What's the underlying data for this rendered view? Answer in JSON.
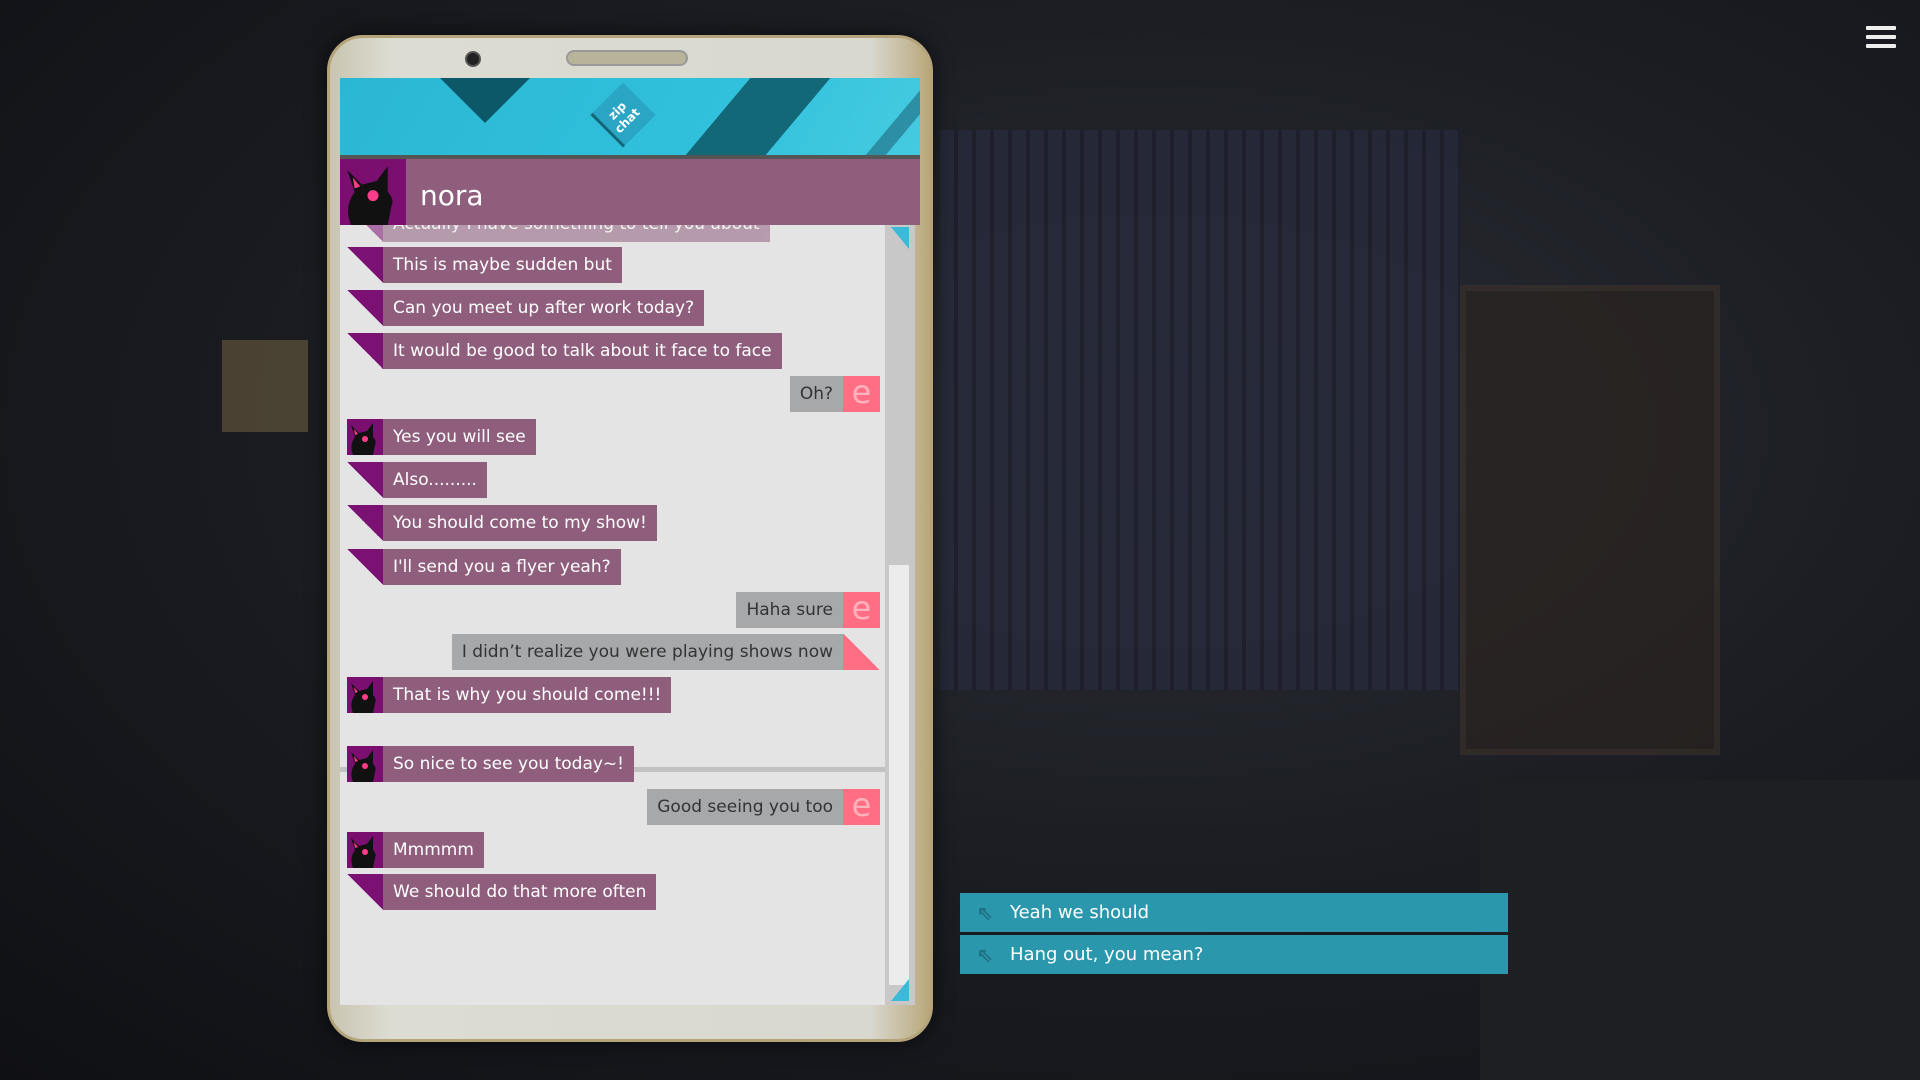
{
  "app": {
    "logo_text": "zip chat",
    "contact_name": "nora"
  },
  "messages": [
    {
      "from": "nora",
      "text": "Actually I have something to tell you about",
      "marker": "triangle"
    },
    {
      "from": "nora",
      "text": "This is maybe sudden but",
      "marker": "triangle"
    },
    {
      "from": "nora",
      "text": "Can you meet up after work today?",
      "marker": "triangle"
    },
    {
      "from": "nora",
      "text": "It would be good to talk about it face to face",
      "marker": "triangle"
    },
    {
      "from": "me",
      "text": "Oh?",
      "marker": "e-icon"
    },
    {
      "from": "nora",
      "text": "Yes you will see",
      "marker": "avatar"
    },
    {
      "from": "nora",
      "text": "Also.........",
      "marker": "triangle"
    },
    {
      "from": "nora",
      "text": "You should come to my show!",
      "marker": "triangle"
    },
    {
      "from": "nora",
      "text": "I'll send you a flyer yeah?",
      "marker": "triangle"
    },
    {
      "from": "me",
      "text": "Haha sure",
      "marker": "e-icon"
    },
    {
      "from": "me",
      "text": "I didn’t realize you were playing shows now",
      "marker": "triangle"
    },
    {
      "from": "nora",
      "text": "That is why you should come!!!",
      "marker": "avatar"
    },
    {
      "from": "nora",
      "text": "So nice to see you today~!",
      "marker": "avatar"
    },
    {
      "from": "me",
      "text": "Good seeing you too",
      "marker": "e-icon"
    },
    {
      "from": "nora",
      "text": "Mmmmm",
      "marker": "avatar"
    },
    {
      "from": "nora",
      "text": "We should do that more often",
      "marker": "triangle"
    }
  ],
  "choices": [
    {
      "label": "Yeah we should",
      "icon": "arrow-up-left-icon"
    },
    {
      "label": "Hang out, you mean?",
      "icon": "arrow-up-left-icon"
    }
  ],
  "icons": {
    "menu": "hamburger-icon",
    "me_marker": "e"
  },
  "colors": {
    "nora_bubble": "#8e5e7c",
    "me_bubble": "#a6a8aa",
    "accent": "#ff6e82",
    "choice": "#2b97ad",
    "banner": "#30c0dc"
  }
}
